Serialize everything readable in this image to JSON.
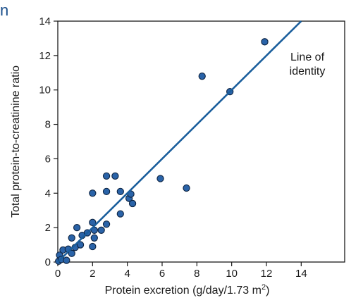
{
  "corner_text": "n",
  "chart_data": {
    "type": "scatter",
    "title": "",
    "xlabel": "Protein excretion (g/day/1.73 m²)",
    "ylabel": "Total protein-to-creatinine ratio",
    "xlim": [
      0,
      16.5
    ],
    "ylim": [
      0,
      14
    ],
    "xticks": [
      0,
      2,
      4,
      6,
      8,
      10,
      12,
      14
    ],
    "yticks": [
      0,
      2,
      4,
      6,
      8,
      10,
      12,
      14
    ],
    "grid": false,
    "legend": "none",
    "point_color": "#2a63a8",
    "point_edge_color": "#0d2340",
    "line_color": "#1a5e9c",
    "reference_line": {
      "label_line1": "Line of",
      "label_line2": "identity",
      "from": [
        0,
        0
      ],
      "to": [
        14,
        14
      ]
    },
    "points": [
      {
        "x": 0.05,
        "y": 0.05
      },
      {
        "x": 0.1,
        "y": 0.4
      },
      {
        "x": 0.2,
        "y": 0.15
      },
      {
        "x": 0.3,
        "y": 0.7
      },
      {
        "x": 0.5,
        "y": 0.1
      },
      {
        "x": 0.6,
        "y": 0.75
      },
      {
        "x": 0.8,
        "y": 0.5
      },
      {
        "x": 0.8,
        "y": 1.4
      },
      {
        "x": 1.0,
        "y": 0.85
      },
      {
        "x": 1.1,
        "y": 2.0
      },
      {
        "x": 1.3,
        "y": 1.0
      },
      {
        "x": 1.4,
        "y": 1.55
      },
      {
        "x": 1.7,
        "y": 1.7
      },
      {
        "x": 2.0,
        "y": 0.9
      },
      {
        "x": 2.0,
        "y": 4.0
      },
      {
        "x": 2.0,
        "y": 2.3
      },
      {
        "x": 2.1,
        "y": 1.4
      },
      {
        "x": 2.1,
        "y": 1.85
      },
      {
        "x": 2.5,
        "y": 1.85
      },
      {
        "x": 2.8,
        "y": 4.1
      },
      {
        "x": 2.8,
        "y": 5.0
      },
      {
        "x": 2.8,
        "y": 2.2
      },
      {
        "x": 3.3,
        "y": 5.0
      },
      {
        "x": 3.6,
        "y": 4.1
      },
      {
        "x": 3.6,
        "y": 2.8
      },
      {
        "x": 4.1,
        "y": 3.7
      },
      {
        "x": 4.2,
        "y": 3.95
      },
      {
        "x": 4.3,
        "y": 3.4
      },
      {
        "x": 5.9,
        "y": 4.85
      },
      {
        "x": 7.4,
        "y": 4.3
      },
      {
        "x": 8.3,
        "y": 10.8
      },
      {
        "x": 9.9,
        "y": 9.9
      },
      {
        "x": 11.9,
        "y": 12.8
      }
    ]
  }
}
